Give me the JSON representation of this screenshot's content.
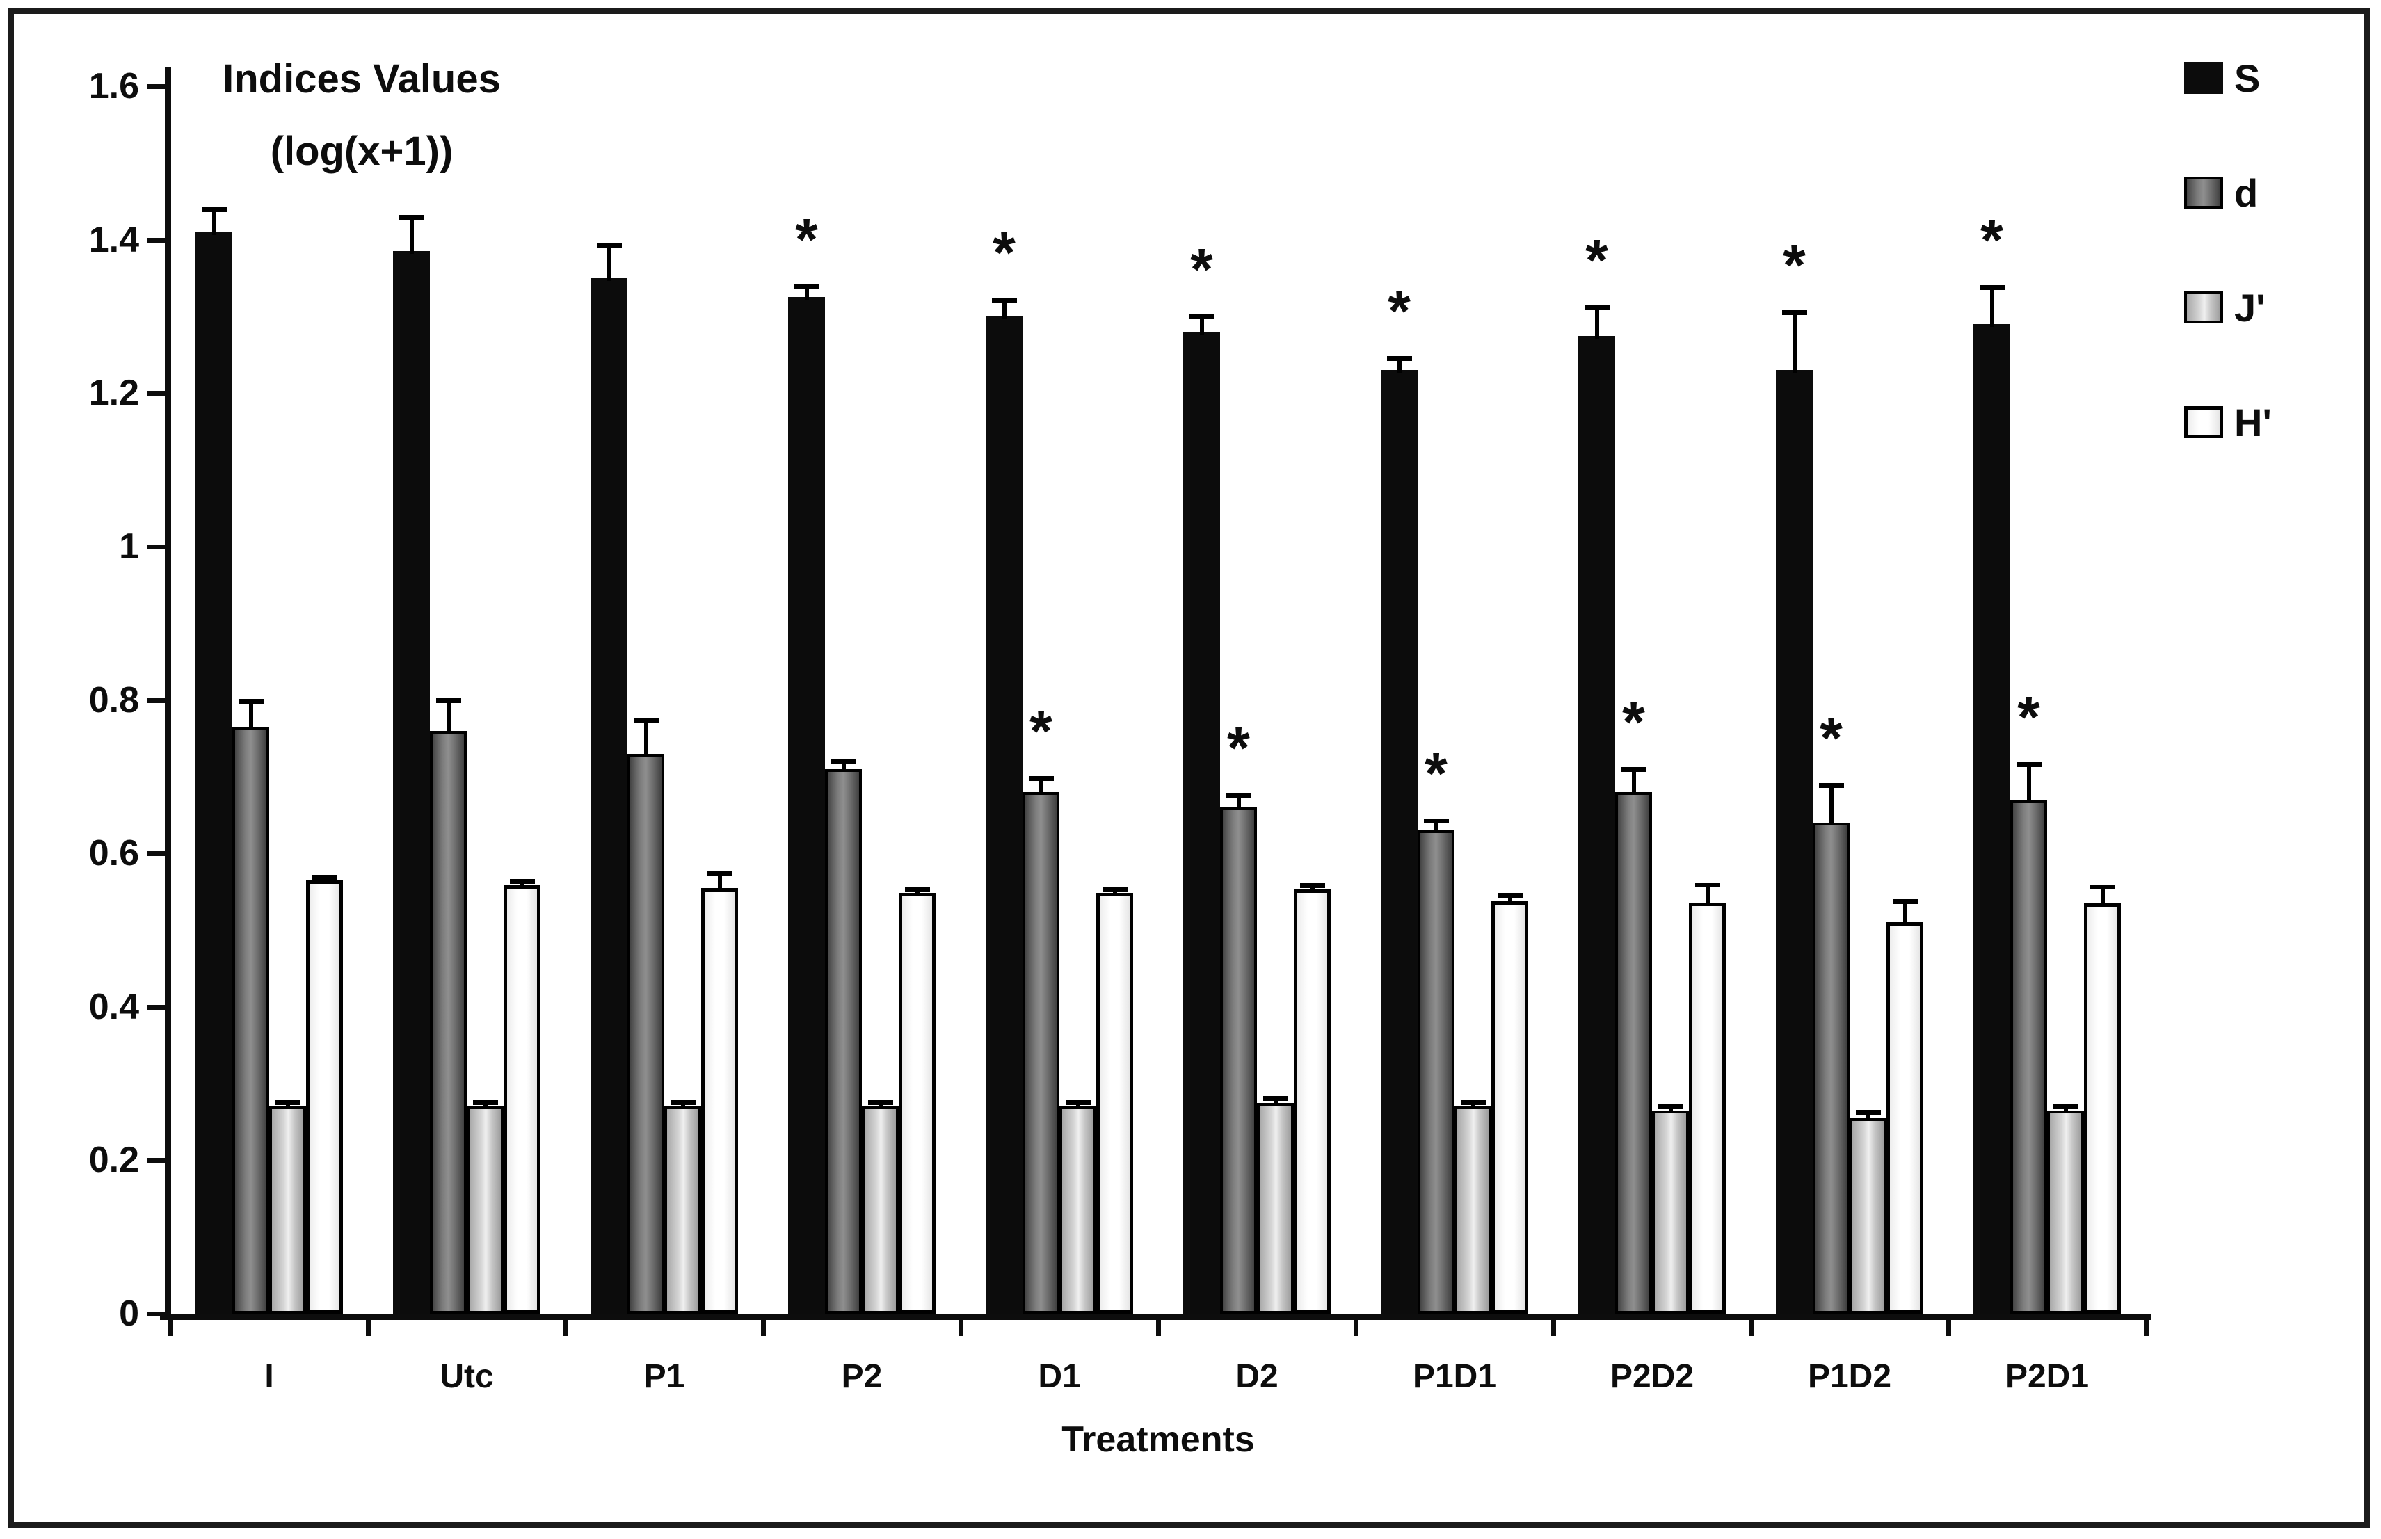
{
  "frame": {
    "border_color": "#1b1b1b",
    "background": "#ffffff"
  },
  "chart_data": {
    "type": "bar",
    "title": "Indices Values",
    "subtitle": "(log(x+1))",
    "xlabel": "Treatments",
    "ylabel": "Indices Values (log(x+1))",
    "ylim": [
      0,
      1.6
    ],
    "y_ticks": [
      "0",
      "0.2",
      "0.4",
      "0.6",
      "0.8",
      "1",
      "1.2",
      "1.4",
      "1.6"
    ],
    "grid": false,
    "legend_position": "right",
    "significance_marker": "*",
    "categories": [
      "I",
      "Utc",
      "P1",
      "P2",
      "D1",
      "D2",
      "P1D1",
      "P2D2",
      "P1D2",
      "P2D1"
    ],
    "series": [
      {
        "name": "S",
        "fill": "#0c0c0c",
        "border": "#000000",
        "values": [
          1.41,
          1.385,
          1.35,
          1.325,
          1.3,
          1.28,
          1.23,
          1.275,
          1.23,
          1.29
        ],
        "errors": [
          0.03,
          0.045,
          0.042,
          0.014,
          0.022,
          0.02,
          0.016,
          0.037,
          0.075,
          0.048
        ],
        "significant": [
          false,
          false,
          false,
          true,
          true,
          true,
          true,
          true,
          true,
          true
        ]
      },
      {
        "name": "d",
        "fill": "#7c7c7c",
        "border": "#000000",
        "values": [
          0.765,
          0.76,
          0.73,
          0.71,
          0.68,
          0.66,
          0.63,
          0.68,
          0.64,
          0.67
        ],
        "errors": [
          0.034,
          0.04,
          0.044,
          0.01,
          0.018,
          0.016,
          0.013,
          0.03,
          0.049,
          0.046
        ],
        "significant": [
          false,
          false,
          false,
          false,
          true,
          true,
          true,
          true,
          true,
          true
        ]
      },
      {
        "name": "J'",
        "fill": "#d6d6d6",
        "border": "#000000",
        "values": [
          0.27,
          0.27,
          0.27,
          0.27,
          0.27,
          0.275,
          0.27,
          0.265,
          0.255,
          0.265
        ],
        "errors": [
          0.006,
          0.006,
          0.006,
          0.006,
          0.006,
          0.006,
          0.006,
          0.006,
          0.008,
          0.006
        ],
        "significant": [
          false,
          false,
          false,
          false,
          false,
          false,
          false,
          false,
          false,
          false
        ]
      },
      {
        "name": "H'",
        "fill": "#ffffff",
        "border": "#000000",
        "values": [
          0.565,
          0.558,
          0.555,
          0.548,
          0.548,
          0.553,
          0.538,
          0.536,
          0.51,
          0.535
        ],
        "errors": [
          0.004,
          0.006,
          0.02,
          0.006,
          0.005,
          0.005,
          0.008,
          0.023,
          0.028,
          0.022
        ],
        "significant": [
          false,
          false,
          false,
          false,
          false,
          false,
          false,
          false,
          false,
          false
        ]
      }
    ]
  }
}
